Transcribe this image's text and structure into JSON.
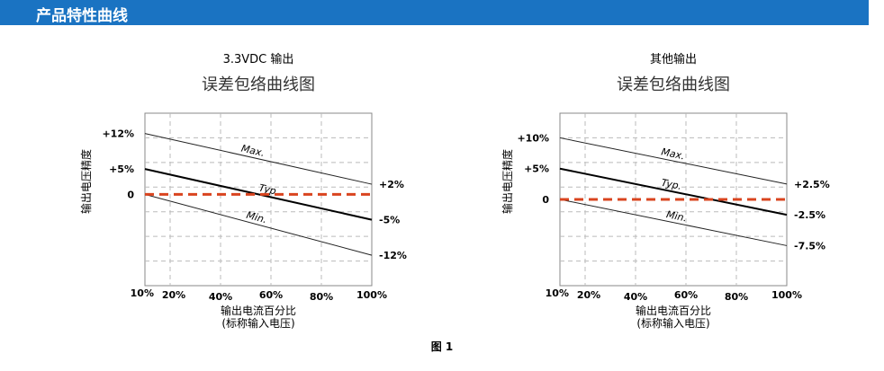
{
  "header": {
    "title": "产品特性曲线"
  },
  "figure_caption": "图 1",
  "chart_data": [
    {
      "type": "line",
      "subtitle": "3.3VDC 输出",
      "title": "误差包络曲线图",
      "xlabel": "输出电流百分比",
      "xlabel_sub": "(标称输入电压)",
      "ylabel": "输出电压精度",
      "xlim": [
        10,
        100
      ],
      "ylim": [
        -18,
        16
      ],
      "grid": true,
      "x_ticks": [
        10,
        20,
        40,
        60,
        80,
        100
      ],
      "x_tick_labels": [
        "10%",
        "20%",
        "40%",
        "60%",
        "80%",
        "100%"
      ],
      "y_ticks": [
        12,
        5,
        0
      ],
      "y_tick_labels": [
        "+12%",
        "+5%",
        "0"
      ],
      "series": [
        {
          "name": "Max.",
          "x": [
            10,
            100
          ],
          "y": [
            12,
            2
          ],
          "end_label": "+2%",
          "color": "#222222",
          "dashed": false,
          "width": 1,
          "label_at": 48
        },
        {
          "name": "Typ.",
          "x": [
            10,
            100
          ],
          "y": [
            5,
            -5
          ],
          "end_label": "-5%",
          "color": "#000000",
          "dashed": false,
          "width": 2,
          "label_at": 55
        },
        {
          "name": "Min.",
          "x": [
            10,
            100
          ],
          "y": [
            0,
            -12
          ],
          "end_label": "-12%",
          "color": "#222222",
          "dashed": false,
          "width": 1,
          "label_at": 50
        },
        {
          "name": "",
          "x": [
            10,
            100
          ],
          "y": [
            0,
            0
          ],
          "end_label": "",
          "color": "#d9441f",
          "dashed": true,
          "width": 3
        }
      ]
    },
    {
      "type": "line",
      "subtitle": "其他输出",
      "title": "误差包络曲线图",
      "xlabel": "输出电流百分比",
      "xlabel_sub": "(标称输入电压)",
      "ylabel": "输出电压精度",
      "xlim": [
        10,
        100
      ],
      "ylim": [
        -14,
        14
      ],
      "grid": true,
      "x_ticks": [
        10,
        20,
        40,
        60,
        80,
        100
      ],
      "x_tick_labels": [
        "10%",
        "20%",
        "40%",
        "60%",
        "80%",
        "100%"
      ],
      "y_ticks": [
        10,
        5,
        0
      ],
      "y_tick_labels": [
        "+10%",
        "+5%",
        "0"
      ],
      "series": [
        {
          "name": "Max.",
          "x": [
            10,
            100
          ],
          "y": [
            10,
            2.5
          ],
          "end_label": "+2.5%",
          "color": "#222222",
          "dashed": false,
          "width": 1,
          "label_at": 50
        },
        {
          "name": "Typ.",
          "x": [
            10,
            100
          ],
          "y": [
            5,
            -2.5
          ],
          "end_label": "-2.5%",
          "color": "#000000",
          "dashed": false,
          "width": 2,
          "label_at": 50
        },
        {
          "name": "Min.",
          "x": [
            10,
            100
          ],
          "y": [
            0,
            -7.5
          ],
          "end_label": "-7.5%",
          "color": "#222222",
          "dashed": false,
          "width": 1,
          "label_at": 52
        },
        {
          "name": "",
          "x": [
            10,
            100
          ],
          "y": [
            0,
            0
          ],
          "end_label": "",
          "color": "#d9441f",
          "dashed": true,
          "width": 3
        }
      ]
    }
  ]
}
